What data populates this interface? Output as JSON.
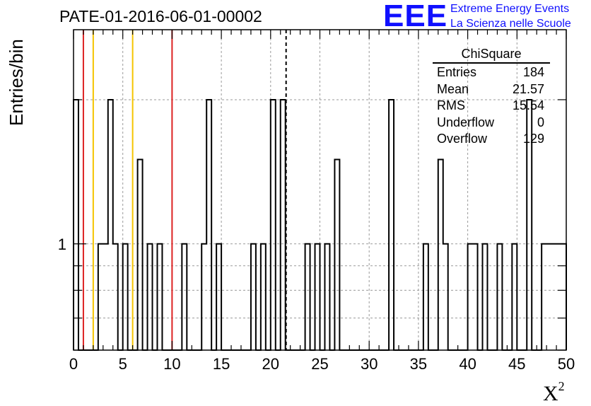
{
  "title": "PATE-01-2016-06-01-00002",
  "logo": {
    "mark": "EEE",
    "line1": "Extreme Energy Events",
    "line2": "La Scienza nelle Scuole"
  },
  "stats": {
    "title": "ChiSquare",
    "rows": [
      {
        "label": "Entries",
        "value": "184"
      },
      {
        "label": "Mean",
        "value": "21.57"
      },
      {
        "label": "RMS",
        "value": "15.54"
      },
      {
        "label": "Underflow",
        "value": "0"
      },
      {
        "label": "Overflow",
        "value": "129"
      }
    ]
  },
  "chart_data": {
    "type": "histogram",
    "title": "PATE-01-2016-06-01-00002",
    "xlabel": "X²",
    "ylabel": "Entries/bin",
    "xlim": [
      0,
      50
    ],
    "ylim": [
      0.6,
      2.8
    ],
    "yscale": "log",
    "bin_width": 0.5,
    "x_ticks": [
      0,
      5,
      10,
      15,
      20,
      25,
      30,
      35,
      40,
      45,
      50
    ],
    "y_ticks": [
      1
    ],
    "grid": true,
    "bins": [
      {
        "x": 0.0,
        "count": 2
      },
      {
        "x": 2.5,
        "count": 1
      },
      {
        "x": 3.0,
        "count": 1
      },
      {
        "x": 3.5,
        "count": 2
      },
      {
        "x": 4.0,
        "count": 1
      },
      {
        "x": 5.0,
        "count": 1
      },
      {
        "x": 6.5,
        "count": 1.5
      },
      {
        "x": 7.5,
        "count": 1
      },
      {
        "x": 8.5,
        "count": 1
      },
      {
        "x": 11.0,
        "count": 1
      },
      {
        "x": 13.0,
        "count": 1
      },
      {
        "x": 13.5,
        "count": 2
      },
      {
        "x": 14.5,
        "count": 1
      },
      {
        "x": 18.0,
        "count": 1
      },
      {
        "x": 19.0,
        "count": 1
      },
      {
        "x": 20.0,
        "count": 2
      },
      {
        "x": 21.0,
        "count": 2
      },
      {
        "x": 23.5,
        "count": 1
      },
      {
        "x": 24.5,
        "count": 1
      },
      {
        "x": 25.5,
        "count": 1
      },
      {
        "x": 26.5,
        "count": 1.5
      },
      {
        "x": 32.0,
        "count": 2
      },
      {
        "x": 35.5,
        "count": 1
      },
      {
        "x": 37.0,
        "count": 1.5
      },
      {
        "x": 37.5,
        "count": 1
      },
      {
        "x": 40.0,
        "count": 1
      },
      {
        "x": 40.5,
        "count": 1
      },
      {
        "x": 41.5,
        "count": 1
      },
      {
        "x": 43.0,
        "count": 1
      },
      {
        "x": 44.5,
        "count": 1
      },
      {
        "x": 46.0,
        "count": 2
      },
      {
        "x": 47.5,
        "count": 1
      },
      {
        "x": 48.0,
        "count": 1
      },
      {
        "x": 48.5,
        "count": 1
      },
      {
        "x": 49.0,
        "count": 1
      },
      {
        "x": 49.5,
        "count": 1
      }
    ],
    "markers": [
      {
        "x": 1.0,
        "color": "#dd2222",
        "style": "solid"
      },
      {
        "x": 2.0,
        "color": "#f5c400",
        "style": "solid"
      },
      {
        "x": 6.0,
        "color": "#f5c400",
        "style": "solid"
      },
      {
        "x": 10.0,
        "color": "#dd2222",
        "style": "solid"
      },
      {
        "x": 21.57,
        "color": "#000000",
        "style": "dashed"
      }
    ]
  }
}
